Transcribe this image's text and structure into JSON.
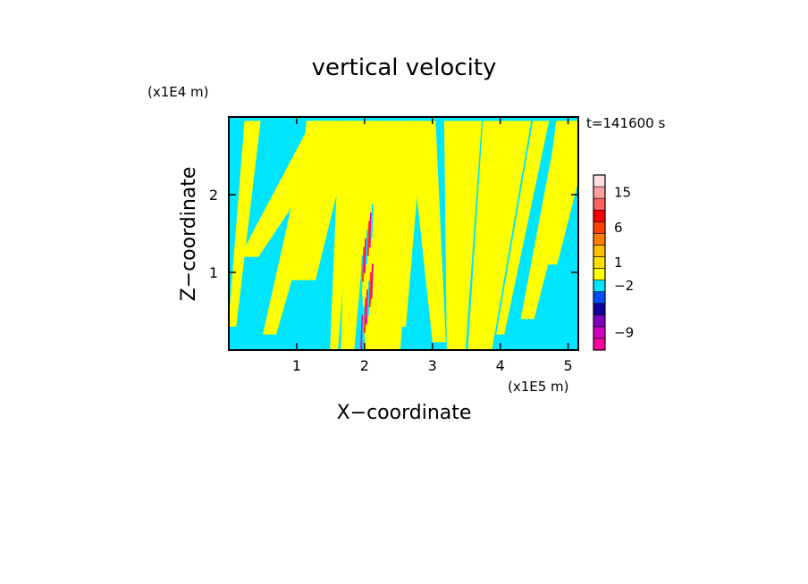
{
  "chart_data": {
    "type": "heatmap",
    "title": "vertical velocity",
    "xlabel": "X−coordinate",
    "ylabel": "Z−coordinate",
    "x_unit_label": "(x1E5 m)",
    "y_unit_label": "(x1E4 m)",
    "time_label": "t=141600 s",
    "xlim": [
      0,
      5.15
    ],
    "ylim": [
      0,
      3.0
    ],
    "x_ticks": [
      1,
      2,
      3,
      4,
      5
    ],
    "y_ticks": [
      1,
      2
    ],
    "colors": {
      "positive_small": "#ffff00",
      "negative_small": "#00e5ff",
      "frame": "#000000"
    },
    "colorbar": {
      "levels": [
        {
          "color": "#ff00a0"
        },
        {
          "color": "#d000c0"
        },
        {
          "color": "#8000c0"
        },
        {
          "color": "#1000a0"
        },
        {
          "color": "#0050ff"
        },
        {
          "color": "#00e5ff"
        },
        {
          "color": "#ffff00"
        },
        {
          "color": "#ffe000"
        },
        {
          "color": "#ffc000"
        },
        {
          "color": "#ff8000"
        },
        {
          "color": "#ff4000"
        },
        {
          "color": "#ff0000"
        },
        {
          "color": "#ff6060"
        },
        {
          "color": "#ffa0a0"
        },
        {
          "color": "#ffe0e0"
        }
      ],
      "labels": [
        {
          "level_index": 1,
          "text": "−9"
        },
        {
          "level_index": 5,
          "text": "−2"
        },
        {
          "level_index": 7,
          "text": "1"
        },
        {
          "level_index": 10,
          "text": "6"
        },
        {
          "level_index": 13,
          "text": "15"
        }
      ]
    },
    "bands": [
      {
        "x0": 0.05,
        "z0": 0.3,
        "x1": 0.35,
        "z1": 2.95,
        "sign": "positive"
      },
      {
        "x0": 0.6,
        "z0": 0.2,
        "x1": 1.4,
        "z1": 2.95,
        "sign": "positive"
      },
      {
        "x0": 0.3,
        "z0": 1.2,
        "x1": 1.5,
        "z1": 2.95,
        "sign": "positive"
      },
      {
        "x0": 1.1,
        "z0": 0.9,
        "x1": 1.5,
        "z1": 2.95,
        "sign": "positive"
      },
      {
        "x0": 1.55,
        "z0": 0.0,
        "x1": 1.75,
        "z1": 2.95,
        "sign": "positive"
      },
      {
        "x0": 1.75,
        "z0": 0.0,
        "x1": 1.95,
        "z1": 2.95,
        "sign": "positive"
      },
      {
        "x0": 2.15,
        "z0": 0.0,
        "x1": 2.1,
        "z1": 2.95,
        "sign": "positive"
      },
      {
        "x0": 2.35,
        "z0": 0.0,
        "x1": 2.4,
        "z1": 2.95,
        "sign": "positive"
      },
      {
        "x0": 2.55,
        "z0": 0.3,
        "x1": 2.75,
        "z1": 2.95,
        "sign": "positive"
      },
      {
        "x0": 3.1,
        "z0": 0.1,
        "x1": 2.85,
        "z1": 2.95,
        "sign": "positive"
      },
      {
        "x0": 3.35,
        "z0": 0.0,
        "x1": 3.45,
        "z1": 2.95,
        "sign": "positive"
      },
      {
        "x0": 3.7,
        "z0": 0.0,
        "x1": 4.1,
        "z1": 2.95,
        "sign": "positive"
      },
      {
        "x0": 4.0,
        "z0": 0.2,
        "x1": 4.6,
        "z1": 2.95,
        "sign": "positive"
      },
      {
        "x0": 4.4,
        "z0": 0.4,
        "x1": 5.05,
        "z1": 2.95,
        "sign": "positive"
      },
      {
        "x0": 4.7,
        "z0": 1.1,
        "x1": 5.1,
        "z1": 2.95,
        "sign": "positive"
      }
    ]
  }
}
